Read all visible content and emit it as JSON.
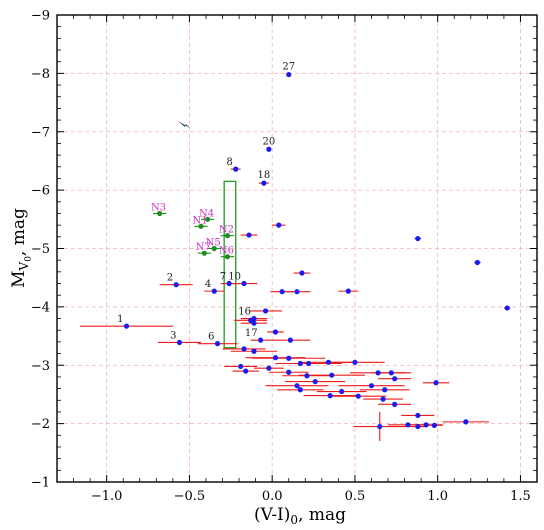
{
  "chart_data": {
    "type": "scatter",
    "xlabel_main": "(V-I)",
    "xlabel_sub": "0",
    "xlabel_unit": ", mag",
    "ylabel_main": "M",
    "ylabel_sub": "V",
    "ylabel_subsub": "0",
    "ylabel_unit": ", mag",
    "xlim": [
      -1.3,
      1.6
    ],
    "ylim": [
      -1,
      -9
    ],
    "y_inverted": true,
    "grid": true,
    "x_ticks": [
      -1.0,
      -0.5,
      0.0,
      0.5,
      1.0,
      1.5
    ],
    "x_tick_labels": [
      "−1.0",
      "−0.5",
      "0.0",
      "0.5",
      "1.0",
      "1.5"
    ],
    "y_ticks": [
      -1,
      -2,
      -3,
      -4,
      -5,
      -6,
      -7,
      -8,
      -9
    ],
    "y_tick_labels": [
      "−1",
      "−2",
      "−3",
      "−4",
      "−5",
      "−6",
      "−7",
      "−8",
      "−9"
    ],
    "colors": {
      "point": "#1a1aee",
      "errorbar": "#ee1a1a",
      "n_point": "#1e8c1e",
      "n_errorbar": "#1e8c1e",
      "n_label": "#cc33cc",
      "grid": "#f5b0b0",
      "box": "#229922"
    },
    "selection_box": {
      "x0": -0.29,
      "x1": -0.22,
      "y0": -3.3,
      "y1": -6.15
    },
    "labeled_points": [
      {
        "label": "27",
        "x": 0.1,
        "y": -7.98,
        "xerr": 0.0,
        "yerr": 0.0
      },
      {
        "label": "20",
        "x": -0.02,
        "y": -6.7,
        "xerr": 0.0,
        "yerr": 0.0
      },
      {
        "label": "8",
        "x": -0.22,
        "y": -6.36,
        "xerr": 0.03,
        "yerr": 0.0
      },
      {
        "label": "18",
        "x": -0.05,
        "y": -6.12,
        "xerr": 0.03,
        "yerr": 0.0
      },
      {
        "label": "2",
        "x": -0.58,
        "y": -4.38,
        "xerr": 0.1,
        "yerr": 0.0
      },
      {
        "label": "7",
        "x": -0.26,
        "y": -4.4,
        "xerr": 0.05,
        "yerr": 0.0
      },
      {
        "label": "10",
        "x": -0.17,
        "y": -4.4,
        "xerr": 0.08,
        "yerr": 0.0
      },
      {
        "label": "4",
        "x": -0.35,
        "y": -4.27,
        "xerr": 0.06,
        "yerr": 0.0
      },
      {
        "label": "1",
        "x": -0.88,
        "y": -3.67,
        "xerr": 0.28,
        "yerr": 0.0
      },
      {
        "label": "16",
        "x": -0.11,
        "y": -3.8,
        "xerr": 0.08,
        "yerr": 0.0
      },
      {
        "label": "3",
        "x": -0.56,
        "y": -3.39,
        "xerr": 0.13,
        "yerr": 0.0
      },
      {
        "label": "6",
        "x": -0.33,
        "y": -3.37,
        "xerr": 0.12,
        "yerr": 0.0
      },
      {
        "label": "17",
        "x": -0.07,
        "y": -3.43,
        "xerr": 0.06,
        "yerr": 0.0
      }
    ],
    "n_points": [
      {
        "label": "N3",
        "x": -0.68,
        "y": -5.6,
        "xerr": 0.04,
        "yerr": 0.0
      },
      {
        "label": "N4",
        "x": -0.39,
        "y": -5.5,
        "xerr": 0.04,
        "yerr": 0.0
      },
      {
        "label": "N1",
        "x": -0.43,
        "y": -5.38,
        "xerr": 0.04,
        "yerr": 0.0
      },
      {
        "label": "N2",
        "x": -0.27,
        "y": -5.22,
        "xerr": 0.04,
        "yerr": 0.0
      },
      {
        "label": "N5",
        "x": -0.35,
        "y": -5.0,
        "xerr": 0.04,
        "yerr": 0.0
      },
      {
        "label": "N7",
        "x": -0.41,
        "y": -4.92,
        "xerr": 0.04,
        "yerr": 0.0
      },
      {
        "label": "N6",
        "x": -0.27,
        "y": -4.86,
        "xerr": 0.04,
        "yerr": 0.0
      }
    ],
    "points": [
      {
        "x": 0.04,
        "y": -5.4,
        "xerr": 0.04,
        "yerr": 0.0
      },
      {
        "x": -0.14,
        "y": -5.23,
        "xerr": 0.05,
        "yerr": 0.0
      },
      {
        "x": 0.88,
        "y": -5.17,
        "xerr": 0.02,
        "yerr": 0.0
      },
      {
        "x": 1.24,
        "y": -4.76,
        "xerr": 0.02,
        "yerr": 0.0
      },
      {
        "x": 0.18,
        "y": -4.58,
        "xerr": 0.05,
        "yerr": 0.0
      },
      {
        "x": 0.06,
        "y": -4.26,
        "xerr": 0.07,
        "yerr": 0.0
      },
      {
        "x": 0.15,
        "y": -4.26,
        "xerr": 0.08,
        "yerr": 0.0
      },
      {
        "x": 0.46,
        "y": -4.27,
        "xerr": 0.06,
        "yerr": 0.0
      },
      {
        "x": 1.42,
        "y": -3.98,
        "xerr": 0.02,
        "yerr": 0.0
      },
      {
        "x": -0.04,
        "y": -3.93,
        "xerr": 0.1,
        "yerr": 0.0
      },
      {
        "x": -0.13,
        "y": -3.77,
        "xerr": 0.1,
        "yerr": 0.0
      },
      {
        "x": -0.11,
        "y": -3.72,
        "xerr": 0.08,
        "yerr": 0.0
      },
      {
        "x": 0.02,
        "y": -3.57,
        "xerr": 0.05,
        "yerr": 0.0
      },
      {
        "x": 0.11,
        "y": -3.43,
        "xerr": 0.12,
        "yerr": 0.0
      },
      {
        "x": -0.17,
        "y": -3.28,
        "xerr": 0.13,
        "yerr": 0.0
      },
      {
        "x": -0.11,
        "y": -3.24,
        "xerr": 0.14,
        "yerr": 0.0
      },
      {
        "x": 0.02,
        "y": -3.13,
        "xerr": 0.18,
        "yerr": 0.0
      },
      {
        "x": 0.1,
        "y": -3.12,
        "xerr": 0.22,
        "yerr": 0.0
      },
      {
        "x": 0.17,
        "y": -3.03,
        "xerr": 0.15,
        "yerr": 0.0
      },
      {
        "x": 0.22,
        "y": -3.03,
        "xerr": 0.2,
        "yerr": 0.0
      },
      {
        "x": 0.34,
        "y": -3.05,
        "xerr": 0.17,
        "yerr": 0.0
      },
      {
        "x": 0.5,
        "y": -3.05,
        "xerr": 0.18,
        "yerr": 0.0
      },
      {
        "x": -0.19,
        "y": -2.98,
        "xerr": 0.1,
        "yerr": 0.0
      },
      {
        "x": -0.16,
        "y": -2.9,
        "xerr": 0.08,
        "yerr": 0.0
      },
      {
        "x": -0.02,
        "y": -2.95,
        "xerr": 0.09,
        "yerr": 0.0
      },
      {
        "x": 0.1,
        "y": -2.88,
        "xerr": 0.12,
        "yerr": 0.0
      },
      {
        "x": 0.21,
        "y": -2.82,
        "xerr": 0.15,
        "yerr": 0.0
      },
      {
        "x": 0.36,
        "y": -2.83,
        "xerr": 0.2,
        "yerr": 0.0
      },
      {
        "x": 0.64,
        "y": -2.87,
        "xerr": 0.17,
        "yerr": 0.0
      },
      {
        "x": 0.72,
        "y": -2.87,
        "xerr": 0.12,
        "yerr": 0.0
      },
      {
        "x": 0.74,
        "y": -2.77,
        "xerr": 0.1,
        "yerr": 0.0
      },
      {
        "x": 0.15,
        "y": -2.65,
        "xerr": 0.19,
        "yerr": 0.0
      },
      {
        "x": 0.26,
        "y": -2.72,
        "xerr": 0.18,
        "yerr": 0.0
      },
      {
        "x": 0.6,
        "y": -2.65,
        "xerr": 0.2,
        "yerr": 0.0
      },
      {
        "x": 0.99,
        "y": -2.7,
        "xerr": 0.08,
        "yerr": 0.0
      },
      {
        "x": 0.17,
        "y": -2.58,
        "xerr": 0.14,
        "yerr": 0.0
      },
      {
        "x": 0.42,
        "y": -2.55,
        "xerr": 0.15,
        "yerr": 0.0
      },
      {
        "x": 0.68,
        "y": -2.58,
        "xerr": 0.15,
        "yerr": 0.0
      },
      {
        "x": 0.35,
        "y": -2.48,
        "xerr": 0.16,
        "yerr": 0.0
      },
      {
        "x": 0.52,
        "y": -2.47,
        "xerr": 0.17,
        "yerr": 0.0
      },
      {
        "x": 0.67,
        "y": -2.42,
        "xerr": 0.12,
        "yerr": 0.0
      },
      {
        "x": 0.74,
        "y": -2.33,
        "xerr": 0.1,
        "yerr": 0.0
      },
      {
        "x": 0.88,
        "y": -2.14,
        "xerr": 0.1,
        "yerr": 0.0
      },
      {
        "x": 0.82,
        "y": -1.98,
        "xerr": 0.12,
        "yerr": 0.0
      },
      {
        "x": 0.93,
        "y": -1.98,
        "xerr": 0.1,
        "yerr": 0.0
      },
      {
        "x": 0.65,
        "y": -1.95,
        "xerr": 0.16,
        "yerr": 0.25
      },
      {
        "x": 0.88,
        "y": -1.95,
        "xerr": 0.06,
        "yerr": 0.0
      },
      {
        "x": 0.98,
        "y": -1.97,
        "xerr": 0.05,
        "yerr": 0.0
      },
      {
        "x": 1.17,
        "y": -2.03,
        "xerr": 0.14,
        "yerr": 0.0
      }
    ]
  }
}
